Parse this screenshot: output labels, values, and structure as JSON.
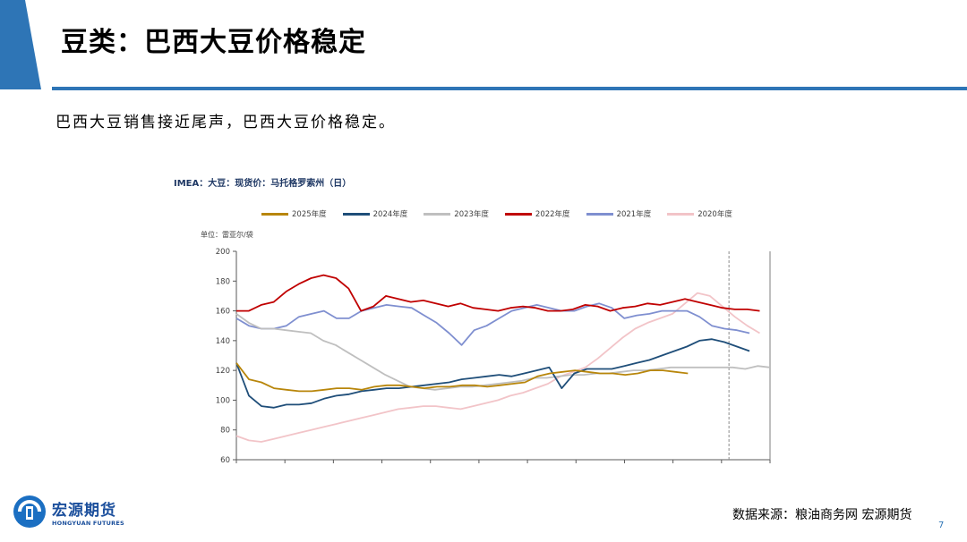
{
  "slide": {
    "title": "豆类：巴西大豆价格稳定",
    "subtitle": "巴西大豆销售接近尾声，巴西大豆价格稳定。",
    "source": "数据来源：粮油商务网  宏源期货",
    "page_number": "7",
    "accent_color": "#2e75b6"
  },
  "logo": {
    "name_cn": "宏源期货",
    "name_en": "HONGYUAN FUTURES",
    "icon": "hongyuan-logo-icon"
  },
  "chart_data": {
    "type": "line",
    "title": "IMEA：大豆：现货价：马托格罗索州（日）",
    "unit": "单位：雷亚尔/袋",
    "ylim": [
      60,
      200
    ],
    "yticks": [
      60,
      80,
      100,
      120,
      140,
      160,
      180,
      200
    ],
    "x_positions": 53,
    "grid": false,
    "legend_position": "top",
    "series": [
      {
        "name": "2025年度",
        "color": "#b8860b",
        "values": [
          125,
          114,
          112,
          108,
          107,
          106,
          106,
          107,
          108,
          108,
          107,
          109,
          110,
          110,
          109,
          108,
          109,
          109,
          110,
          110,
          109,
          110,
          111,
          112,
          116,
          118,
          119,
          120,
          119,
          118,
          118,
          117,
          118,
          120,
          120,
          119,
          118
        ]
      },
      {
        "name": "2024年度",
        "color": "#1f4e79",
        "values": [
          125,
          103,
          96,
          95,
          97,
          97,
          98,
          101,
          103,
          104,
          106,
          107,
          108,
          108,
          109,
          110,
          111,
          112,
          114,
          115,
          116,
          117,
          116,
          118,
          120,
          122,
          108,
          118,
          121,
          121,
          121,
          123,
          125,
          127,
          130,
          133,
          136,
          140,
          141,
          139,
          136,
          133
        ]
      },
      {
        "name": "2023年度",
        "color": "#bfbfbf",
        "values": [
          158,
          152,
          148,
          148,
          147,
          146,
          145,
          140,
          137,
          132,
          127,
          122,
          117,
          113,
          109,
          108,
          107,
          108,
          109,
          109,
          110,
          111,
          112,
          113,
          115,
          115,
          116,
          117,
          117,
          118,
          118,
          119,
          120,
          120,
          121,
          122,
          122,
          122,
          122,
          122,
          122,
          121,
          123,
          122
        ]
      },
      {
        "name": "2022年度",
        "color": "#c00000",
        "values": [
          160,
          160,
          164,
          166,
          173,
          178,
          182,
          184,
          182,
          175,
          160,
          163,
          170,
          168,
          166,
          167,
          165,
          163,
          165,
          162,
          161,
          160,
          162,
          163,
          162,
          160,
          160,
          161,
          164,
          163,
          160,
          162,
          163,
          165,
          164,
          166,
          168,
          166,
          164,
          162,
          161,
          161,
          160
        ]
      },
      {
        "name": "2021年度",
        "color": "#7f8fd0",
        "values": [
          155,
          150,
          148,
          148,
          150,
          156,
          158,
          160,
          155,
          155,
          160,
          162,
          164,
          163,
          162,
          157,
          152,
          145,
          137,
          147,
          150,
          155,
          160,
          162,
          164,
          162,
          160,
          160,
          163,
          165,
          162,
          155,
          157,
          158,
          160,
          160,
          160,
          156,
          150,
          148,
          147,
          145
        ]
      },
      {
        "name": "2020年度",
        "color": "#f2c4c8",
        "values": [
          76,
          73,
          72,
          74,
          76,
          78,
          80,
          82,
          84,
          86,
          88,
          90,
          92,
          94,
          95,
          96,
          96,
          95,
          94,
          96,
          98,
          100,
          103,
          105,
          108,
          111,
          116,
          119,
          122,
          128,
          135,
          142,
          148,
          152,
          155,
          158,
          165,
          172,
          170,
          163,
          156,
          150,
          145
        ]
      }
    ]
  }
}
